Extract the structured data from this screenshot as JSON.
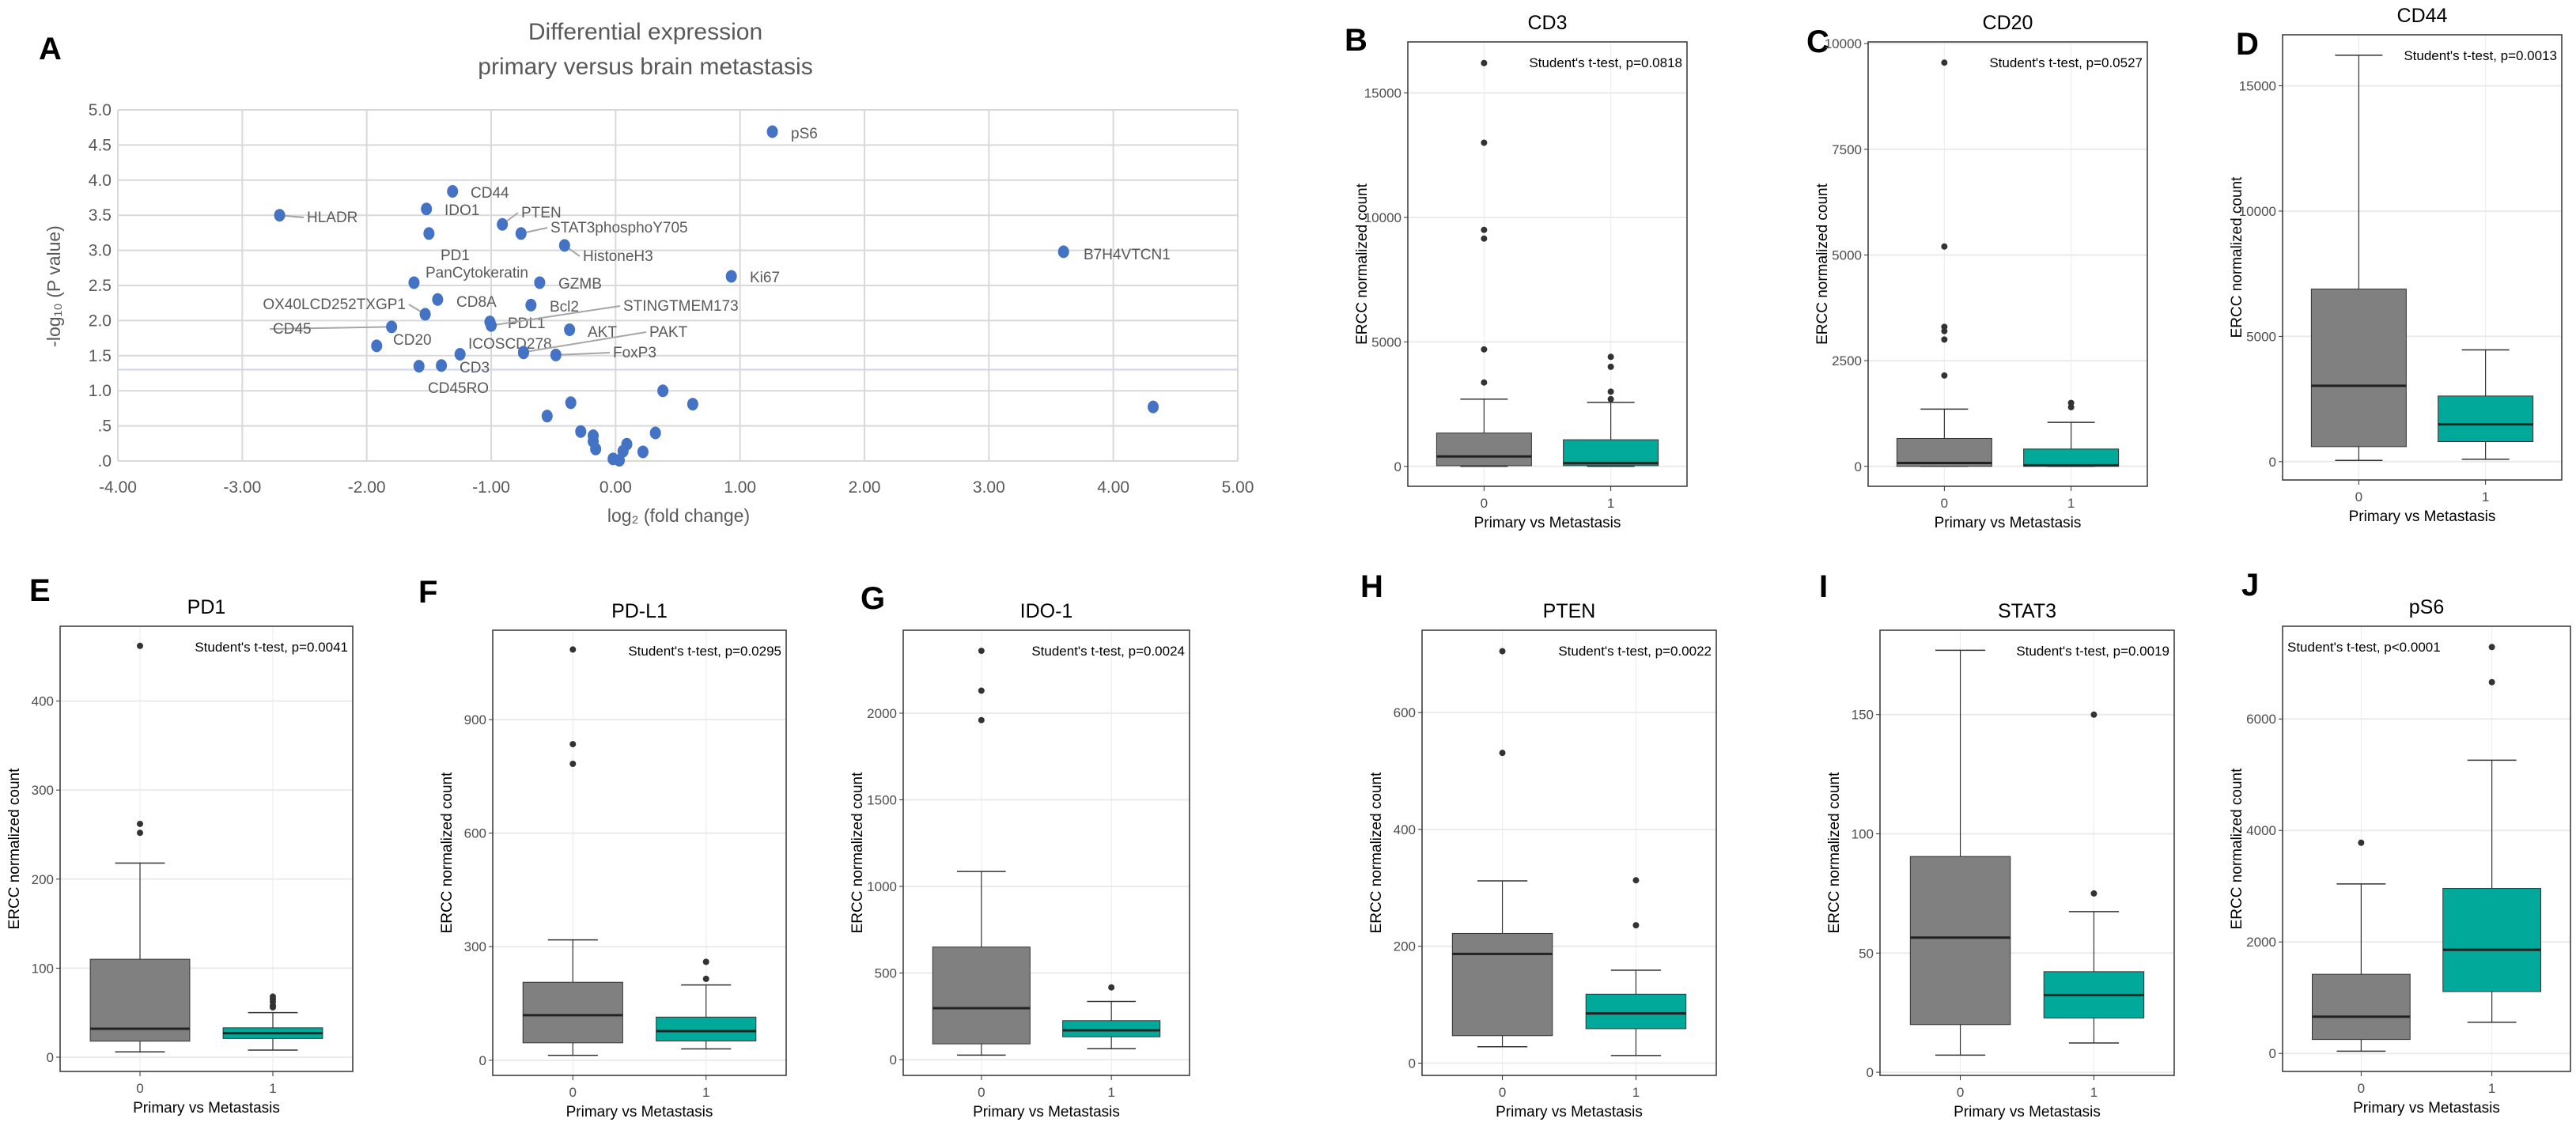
{
  "colors": {
    "points": "#4472C4",
    "primary_box": "#808080",
    "metastasis_box": "#00A99A",
    "threshold": "#C9D7EE"
  },
  "chart_data": [
    {
      "type": "scatter",
      "letter": "A",
      "title": [
        "Differential expression",
        "primary versus brain metastasis"
      ],
      "xlabel": "log₂ (fold change)",
      "ylabel": "-log₁₀ (P value)",
      "xlim": [
        -4,
        5
      ],
      "ylim": [
        0,
        5
      ],
      "xticks": [
        "-4.00",
        "-3.00",
        "-2.00",
        "-1.00",
        "0.00",
        "1.00",
        "2.00",
        "3.00",
        "4.00",
        "5.00"
      ],
      "yticks": [
        ".0",
        ".5",
        "1.0",
        "1.5",
        "2.0",
        "2.5",
        "3.0",
        "3.5",
        "4.0",
        "4.5",
        "5.0"
      ],
      "grid": true,
      "threshold_y": 1.3,
      "points": [
        {
          "label": "pS6",
          "x": 1.26,
          "y": 4.69
        },
        {
          "label": "CD44",
          "x": -1.31,
          "y": 3.84
        },
        {
          "label": "IDO1",
          "x": -1.52,
          "y": 3.59
        },
        {
          "label": "HLADR",
          "x": -2.7,
          "y": 3.5
        },
        {
          "label": "PTEN",
          "x": -0.91,
          "y": 3.37
        },
        {
          "label": "STAT3phosphoY705",
          "x": -0.76,
          "y": 3.24
        },
        {
          "label": "PD1",
          "x": -1.5,
          "y": 3.24
        },
        {
          "label": "HistoneH3",
          "x": -0.41,
          "y": 3.07
        },
        {
          "label": "B7H4VTCN1",
          "x": 3.6,
          "y": 2.98
        },
        {
          "label": "Ki67",
          "x": 0.93,
          "y": 2.63
        },
        {
          "label": "PanCytokeratin",
          "x": -1.62,
          "y": 2.54
        },
        {
          "label": "GZMB",
          "x": -0.61,
          "y": 2.54
        },
        {
          "label": "CD8A",
          "x": -1.43,
          "y": 2.3
        },
        {
          "label": "Bcl2",
          "x": -0.68,
          "y": 2.22
        },
        {
          "label": "OX40LCD252TXGP1",
          "x": -1.53,
          "y": 2.09
        },
        {
          "label": "PDL1",
          "x": -1.01,
          "y": 1.98
        },
        {
          "label": "STINGTMEM173",
          "x": -1.0,
          "y": 1.93
        },
        {
          "label": "CD45",
          "x": -1.8,
          "y": 1.91
        },
        {
          "label": "AKT",
          "x": -0.37,
          "y": 1.87
        },
        {
          "label": "CD20",
          "x": -1.92,
          "y": 1.64
        },
        {
          "label": "ICOSCD278",
          "x": -0.74,
          "y": 1.54
        },
        {
          "label": "PAKT",
          "x": -0.74,
          "y": 1.55
        },
        {
          "label": "FoxP3",
          "x": -0.48,
          "y": 1.51
        },
        {
          "label": "",
          "x": -1.25,
          "y": 1.52
        },
        {
          "label": "CD3",
          "x": -1.4,
          "y": 1.36
        },
        {
          "label": "CD45RO",
          "x": -1.58,
          "y": 1.35
        },
        {
          "label": "",
          "x": 0.38,
          "y": 1.0
        },
        {
          "label": "",
          "x": -0.36,
          "y": 0.83
        },
        {
          "label": "",
          "x": 0.62,
          "y": 0.81
        },
        {
          "label": "",
          "x": 4.32,
          "y": 0.77
        },
        {
          "label": "",
          "x": -0.55,
          "y": 0.64
        },
        {
          "label": "",
          "x": -0.28,
          "y": 0.42
        },
        {
          "label": "",
          "x": 0.32,
          "y": 0.4
        },
        {
          "label": "",
          "x": -0.18,
          "y": 0.36
        },
        {
          "label": "",
          "x": -0.18,
          "y": 0.28
        },
        {
          "label": "",
          "x": 0.09,
          "y": 0.24
        },
        {
          "label": "",
          "x": -0.16,
          "y": 0.17
        },
        {
          "label": "",
          "x": 0.06,
          "y": 0.14
        },
        {
          "label": "",
          "x": 0.22,
          "y": 0.13
        },
        {
          "label": "",
          "x": -0.02,
          "y": 0.03
        },
        {
          "label": "",
          "x": 0.03,
          "y": 0.01
        }
      ]
    },
    {
      "type": "box",
      "letter": "B",
      "title": "CD3",
      "pvalue": "Student's t-test, p=0.0818",
      "ylabel": "ERCC normalized count",
      "xlabel": "Primary vs Metastasis",
      "categories": [
        "0",
        "1"
      ],
      "yticks": [
        0,
        5000,
        10000,
        15000
      ],
      "ylim": [
        -800,
        17050
      ],
      "groups": [
        {
          "whisker_low": 0,
          "q1": 27,
          "median": 400,
          "q3": 1340,
          "whisker_high": 2700,
          "outliers": [
            3370,
            4700,
            9150,
            9500,
            13000,
            16200
          ]
        },
        {
          "whisker_low": 0,
          "q1": 30,
          "median": 130,
          "q3": 1070,
          "whisker_high": 2570,
          "outliers": [
            2700,
            3000,
            4000,
            4400
          ]
        }
      ]
    },
    {
      "type": "box",
      "letter": "C",
      "title": "CD20",
      "pvalue": "Student's t-test, p=0.0527",
      "ylabel": "ERCC normalized count",
      "xlabel": "Primary vs Metastasis",
      "categories": [
        "0",
        "1"
      ],
      "yticks": [
        0,
        2500,
        5000,
        7500,
        10000
      ],
      "ylim": [
        -472,
        10040
      ],
      "groups": [
        {
          "whisker_low": 0,
          "q1": 0,
          "median": 80,
          "q3": 660,
          "whisker_high": 1355,
          "outliers": [
            2150,
            3000,
            3200,
            3300,
            5200,
            9550
          ]
        },
        {
          "whisker_low": 0,
          "q1": 0,
          "median": 25,
          "q3": 410,
          "whisker_high": 1040,
          "outliers": [
            1400,
            1500
          ]
        }
      ]
    },
    {
      "type": "box",
      "letter": "D",
      "title": "CD44",
      "pvalue": "Student's t-test, p=0.0013",
      "ylabel": "ERCC normalized count",
      "xlabel": "Primary vs Metastasis",
      "categories": [
        "0",
        "1"
      ],
      "yticks": [
        0,
        5000,
        10000,
        15000
      ],
      "ylim": [
        -730,
        17035
      ],
      "groups": [
        {
          "whisker_low": 50,
          "q1": 600,
          "median": 3030,
          "q3": 6890,
          "whisker_high": 16220,
          "outliers": []
        },
        {
          "whisker_low": 100,
          "q1": 800,
          "median": 1490,
          "q3": 2620,
          "whisker_high": 4460,
          "outliers": []
        }
      ]
    },
    {
      "type": "box",
      "letter": "E",
      "title": "PD1",
      "pvalue": "Student's t-test, p=0.0041",
      "ylabel": "ERCC normalized count",
      "xlabel": "Primary vs Metastasis",
      "categories": [
        "0",
        "1"
      ],
      "yticks": [
        0,
        100,
        200,
        300,
        400
      ],
      "ylim": [
        -16,
        484
      ],
      "groups": [
        {
          "whisker_low": 6,
          "q1": 18,
          "median": 32,
          "q3": 110,
          "whisker_high": 218,
          "outliers": [
            252,
            262,
            462
          ]
        },
        {
          "whisker_low": 8,
          "q1": 21,
          "median": 27,
          "q3": 33,
          "whisker_high": 50,
          "outliers": [
            56,
            58,
            62,
            65,
            68
          ]
        }
      ]
    },
    {
      "type": "box",
      "letter": "F",
      "title": "PD-L1",
      "pvalue": "Student's t-test, p=0.0295",
      "ylabel": "ERCC normalized count",
      "xlabel": "Primary vs Metastasis",
      "categories": [
        "0",
        "1"
      ],
      "yticks": [
        0,
        300,
        600,
        900
      ],
      "ylim": [
        -40,
        1136
      ],
      "groups": [
        {
          "whisker_low": 13,
          "q1": 46,
          "median": 119,
          "q3": 206,
          "whisker_high": 318,
          "outliers": [
            783,
            835,
            1085
          ]
        },
        {
          "whisker_low": 30,
          "q1": 51,
          "median": 77,
          "q3": 114,
          "whisker_high": 199,
          "outliers": [
            215,
            260
          ]
        }
      ]
    },
    {
      "type": "box",
      "letter": "G",
      "title": "IDO-1",
      "pvalue": "Student's t-test, p=0.0024",
      "ylabel": "ERCC normalized count",
      "xlabel": "Primary vs Metastasis",
      "categories": [
        "0",
        "1"
      ],
      "yticks": [
        0,
        500,
        1000,
        1500,
        2000
      ],
      "ylim": [
        -91,
        2479
      ],
      "groups": [
        {
          "whisker_low": 26,
          "q1": 91,
          "median": 297,
          "q3": 650,
          "whisker_high": 1086,
          "outliers": [
            1960,
            2130,
            2360
          ]
        },
        {
          "whisker_low": 63,
          "q1": 132,
          "median": 169,
          "q3": 225,
          "whisker_high": 336,
          "outliers": [
            417
          ]
        }
      ]
    },
    {
      "type": "box",
      "letter": "H",
      "title": "PTEN",
      "pvalue": "Student's t-test, p=0.0022",
      "ylabel": "ERCC normalized count",
      "xlabel": "Primary vs Metastasis",
      "categories": [
        "0",
        "1"
      ],
      "yticks": [
        0,
        200,
        400,
        600
      ],
      "ylim": [
        -21,
        741
      ],
      "groups": [
        {
          "whisker_low": 28,
          "q1": 47,
          "median": 187,
          "q3": 222,
          "whisker_high": 312,
          "outliers": [
            531,
            705
          ]
        },
        {
          "whisker_low": 13,
          "q1": 59,
          "median": 85,
          "q3": 118,
          "whisker_high": 159,
          "outliers": [
            236,
            313
          ]
        }
      ]
    },
    {
      "type": "box",
      "letter": "I",
      "title": "STAT3",
      "pvalue": "Student's t-test, p=0.0019",
      "ylabel": "ERCC normalized count",
      "xlabel": "Primary vs Metastasis",
      "categories": [
        "0",
        "1"
      ],
      "yticks": [
        0,
        50,
        100,
        150
      ],
      "ylim": [
        -1.3,
        185.4
      ],
      "groups": [
        {
          "whisker_low": 7.2,
          "q1": 20,
          "median": 56.5,
          "q3": 90.5,
          "whisker_high": 177,
          "outliers": []
        },
        {
          "whisker_low": 12.3,
          "q1": 22.8,
          "median": 32.4,
          "q3": 42.2,
          "whisker_high": 67.4,
          "outliers": [
            75,
            150
          ]
        }
      ]
    },
    {
      "type": "box",
      "letter": "J",
      "title": "pS6",
      "pvalue": "Student's t-test, p<0.0001",
      "ylabel": "ERCC normalized count",
      "xlabel": "Primary vs Metastasis",
      "categories": [
        "0",
        "1"
      ],
      "yticks": [
        0,
        2000,
        4000,
        6000
      ],
      "ylim": [
        -323,
        7663
      ],
      "groups": [
        {
          "whisker_low": 40,
          "q1": 250,
          "median": 660,
          "q3": 1420,
          "whisker_high": 3040,
          "outliers": [
            3780
          ]
        },
        {
          "whisker_low": 560,
          "q1": 1110,
          "median": 1860,
          "q3": 2960,
          "whisker_high": 5260,
          "outliers": [
            6660,
            7290
          ]
        }
      ]
    }
  ]
}
